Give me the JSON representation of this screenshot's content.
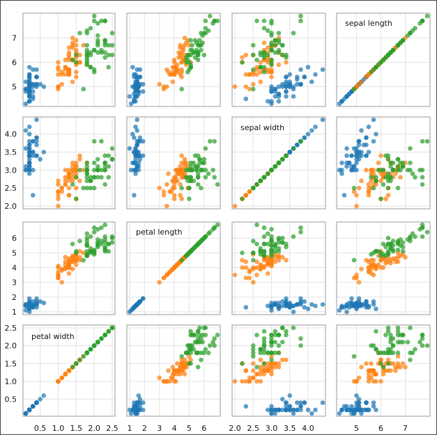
{
  "chart_data": {
    "type": "scatter",
    "subtype": "scatter-plot-matrix",
    "title": "",
    "variables": [
      "sepal length",
      "sepal width",
      "petal length",
      "petal width"
    ],
    "axis_domains": {
      "sepal length": [
        4.3,
        7.9
      ],
      "sepal width": [
        2.0,
        4.4
      ],
      "petal length": [
        1.0,
        6.9
      ],
      "petal width": [
        0.1,
        2.5
      ]
    },
    "x_ticks": {
      "petal width": [
        "0.5",
        "1.0",
        "1.5",
        "2.0",
        "2.5"
      ],
      "petal length": [
        "1",
        "2",
        "3",
        "4",
        "5",
        "6"
      ],
      "sepal width": [
        "2.0",
        "2.5",
        "3.0",
        "3.5",
        "4.0"
      ],
      "sepal length": [
        "5",
        "6",
        "7"
      ]
    },
    "y_ticks": {
      "sepal length": [
        "5",
        "6",
        "7"
      ],
      "sepal width": [
        "2.0",
        "2.5",
        "3.0",
        "3.5",
        "4.0"
      ],
      "petal length": [
        "1",
        "2",
        "3",
        "4",
        "5",
        "6"
      ],
      "petal width": [
        "0.5",
        "1.0",
        "1.5",
        "2.0",
        "2.5"
      ]
    },
    "grid": true,
    "legend": "none",
    "series": [
      {
        "color": "#1f77b4",
        "points": [
          [
            5.1,
            3.5,
            1.4,
            0.2
          ],
          [
            4.9,
            3.0,
            1.4,
            0.2
          ],
          [
            4.7,
            3.2,
            1.3,
            0.2
          ],
          [
            4.6,
            3.1,
            1.5,
            0.2
          ],
          [
            5.0,
            3.6,
            1.4,
            0.2
          ],
          [
            5.4,
            3.9,
            1.7,
            0.4
          ],
          [
            4.6,
            3.4,
            1.4,
            0.3
          ],
          [
            5.0,
            3.4,
            1.5,
            0.2
          ],
          [
            4.4,
            2.9,
            1.4,
            0.2
          ],
          [
            4.9,
            3.1,
            1.5,
            0.1
          ],
          [
            5.4,
            3.7,
            1.5,
            0.2
          ],
          [
            4.8,
            3.4,
            1.6,
            0.2
          ],
          [
            4.8,
            3.0,
            1.4,
            0.1
          ],
          [
            4.3,
            3.0,
            1.1,
            0.1
          ],
          [
            5.8,
            4.0,
            1.2,
            0.2
          ],
          [
            5.7,
            4.4,
            1.5,
            0.4
          ],
          [
            5.4,
            3.9,
            1.3,
            0.4
          ],
          [
            5.1,
            3.5,
            1.4,
            0.3
          ],
          [
            5.7,
            3.8,
            1.7,
            0.3
          ],
          [
            5.1,
            3.8,
            1.5,
            0.3
          ],
          [
            5.4,
            3.4,
            1.7,
            0.2
          ],
          [
            5.1,
            3.7,
            1.5,
            0.4
          ],
          [
            4.6,
            3.6,
            1.0,
            0.2
          ],
          [
            5.1,
            3.3,
            1.7,
            0.5
          ],
          [
            4.8,
            3.4,
            1.9,
            0.2
          ],
          [
            5.0,
            3.0,
            1.6,
            0.2
          ],
          [
            5.0,
            3.4,
            1.6,
            0.4
          ],
          [
            5.2,
            3.5,
            1.5,
            0.2
          ],
          [
            5.2,
            3.4,
            1.4,
            0.2
          ],
          [
            4.7,
            3.2,
            1.6,
            0.2
          ],
          [
            4.8,
            3.1,
            1.6,
            0.2
          ],
          [
            5.4,
            3.4,
            1.5,
            0.4
          ],
          [
            5.2,
            4.1,
            1.5,
            0.1
          ],
          [
            5.5,
            4.2,
            1.4,
            0.2
          ],
          [
            4.9,
            3.1,
            1.5,
            0.2
          ],
          [
            5.0,
            3.2,
            1.2,
            0.2
          ],
          [
            5.5,
            3.5,
            1.3,
            0.2
          ],
          [
            4.9,
            3.6,
            1.4,
            0.1
          ],
          [
            4.4,
            3.0,
            1.3,
            0.2
          ],
          [
            5.1,
            3.4,
            1.5,
            0.2
          ],
          [
            5.0,
            3.5,
            1.3,
            0.3
          ],
          [
            4.5,
            2.3,
            1.3,
            0.3
          ],
          [
            4.4,
            3.2,
            1.3,
            0.2
          ],
          [
            5.0,
            3.5,
            1.6,
            0.6
          ],
          [
            5.1,
            3.8,
            1.9,
            0.4
          ],
          [
            4.8,
            3.0,
            1.4,
            0.3
          ],
          [
            5.1,
            3.8,
            1.6,
            0.2
          ],
          [
            4.6,
            3.2,
            1.4,
            0.2
          ],
          [
            5.3,
            3.7,
            1.5,
            0.2
          ],
          [
            5.0,
            3.3,
            1.4,
            0.2
          ]
        ]
      },
      {
        "color": "#ff7f0e",
        "points": [
          [
            7.0,
            3.2,
            4.7,
            1.4
          ],
          [
            6.4,
            3.2,
            4.5,
            1.5
          ],
          [
            6.9,
            3.1,
            4.9,
            1.5
          ],
          [
            5.5,
            2.3,
            4.0,
            1.3
          ],
          [
            6.5,
            2.8,
            4.6,
            1.5
          ],
          [
            5.7,
            2.8,
            4.5,
            1.3
          ],
          [
            6.3,
            3.3,
            4.7,
            1.6
          ],
          [
            4.9,
            2.4,
            3.3,
            1.0
          ],
          [
            6.6,
            2.9,
            4.6,
            1.3
          ],
          [
            5.2,
            2.7,
            3.9,
            1.4
          ],
          [
            5.0,
            2.0,
            3.5,
            1.0
          ],
          [
            5.9,
            3.0,
            4.2,
            1.5
          ],
          [
            6.0,
            2.2,
            4.0,
            1.0
          ],
          [
            6.1,
            2.9,
            4.7,
            1.4
          ],
          [
            5.6,
            2.9,
            3.6,
            1.3
          ],
          [
            6.7,
            3.1,
            4.4,
            1.4
          ],
          [
            5.6,
            3.0,
            4.5,
            1.5
          ],
          [
            5.8,
            2.7,
            4.1,
            1.0
          ],
          [
            6.2,
            2.2,
            4.5,
            1.5
          ],
          [
            5.6,
            2.5,
            3.9,
            1.1
          ],
          [
            5.9,
            3.2,
            4.8,
            1.8
          ],
          [
            6.1,
            2.8,
            4.0,
            1.3
          ],
          [
            6.3,
            2.5,
            4.9,
            1.5
          ],
          [
            6.1,
            2.8,
            4.7,
            1.2
          ],
          [
            6.4,
            2.9,
            4.3,
            1.3
          ],
          [
            6.6,
            3.0,
            4.4,
            1.4
          ],
          [
            6.8,
            2.8,
            4.8,
            1.4
          ],
          [
            6.7,
            3.0,
            5.0,
            1.7
          ],
          [
            6.0,
            2.9,
            4.5,
            1.5
          ],
          [
            5.7,
            2.6,
            3.5,
            1.0
          ],
          [
            5.5,
            2.4,
            3.8,
            1.1
          ],
          [
            5.5,
            2.4,
            3.7,
            1.0
          ],
          [
            5.8,
            2.7,
            3.9,
            1.2
          ],
          [
            6.0,
            2.7,
            5.1,
            1.6
          ],
          [
            5.4,
            3.0,
            4.5,
            1.5
          ],
          [
            6.0,
            3.4,
            4.5,
            1.6
          ],
          [
            6.7,
            3.1,
            4.7,
            1.5
          ],
          [
            6.3,
            2.3,
            4.4,
            1.3
          ],
          [
            5.6,
            3.0,
            4.1,
            1.3
          ],
          [
            5.5,
            2.5,
            4.0,
            1.3
          ],
          [
            5.5,
            2.6,
            4.4,
            1.2
          ],
          [
            6.1,
            3.0,
            4.6,
            1.4
          ],
          [
            5.8,
            2.6,
            4.0,
            1.2
          ],
          [
            5.0,
            2.3,
            3.3,
            1.0
          ],
          [
            5.6,
            2.7,
            4.2,
            1.3
          ],
          [
            5.7,
            3.0,
            4.2,
            1.2
          ],
          [
            5.7,
            2.9,
            4.2,
            1.3
          ],
          [
            6.2,
            2.9,
            4.3,
            1.3
          ],
          [
            5.1,
            2.5,
            3.0,
            1.1
          ],
          [
            5.7,
            2.8,
            4.1,
            1.3
          ]
        ]
      },
      {
        "color": "#2ca02c",
        "points": [
          [
            6.3,
            3.3,
            6.0,
            2.5
          ],
          [
            5.8,
            2.7,
            5.1,
            1.9
          ],
          [
            7.1,
            3.0,
            5.9,
            2.1
          ],
          [
            6.3,
            2.9,
            5.6,
            1.8
          ],
          [
            6.5,
            3.0,
            5.8,
            2.2
          ],
          [
            7.6,
            3.0,
            6.6,
            2.1
          ],
          [
            4.9,
            2.5,
            4.5,
            1.7
          ],
          [
            7.3,
            2.9,
            6.3,
            1.8
          ],
          [
            6.7,
            2.5,
            5.8,
            1.8
          ],
          [
            7.2,
            3.6,
            6.1,
            2.5
          ],
          [
            6.5,
            3.2,
            5.1,
            2.0
          ],
          [
            6.4,
            2.7,
            5.3,
            1.9
          ],
          [
            6.8,
            3.0,
            5.5,
            2.1
          ],
          [
            5.7,
            2.5,
            5.0,
            2.0
          ],
          [
            5.8,
            2.8,
            5.1,
            2.4
          ],
          [
            6.4,
            3.2,
            5.3,
            2.3
          ],
          [
            6.5,
            3.0,
            5.5,
            1.8
          ],
          [
            7.7,
            3.8,
            6.7,
            2.2
          ],
          [
            7.7,
            2.6,
            6.9,
            2.3
          ],
          [
            6.0,
            2.2,
            5.0,
            1.5
          ],
          [
            6.9,
            3.2,
            5.7,
            2.3
          ],
          [
            5.6,
            2.8,
            4.9,
            2.0
          ],
          [
            7.7,
            2.8,
            6.7,
            2.0
          ],
          [
            6.3,
            2.7,
            4.9,
            1.8
          ],
          [
            6.7,
            3.3,
            5.7,
            2.1
          ],
          [
            7.2,
            3.2,
            6.0,
            1.8
          ],
          [
            6.2,
            2.8,
            4.8,
            1.8
          ],
          [
            6.1,
            3.0,
            4.9,
            1.8
          ],
          [
            6.4,
            2.8,
            5.6,
            2.1
          ],
          [
            7.2,
            3.0,
            5.8,
            1.6
          ],
          [
            7.4,
            2.8,
            6.1,
            1.9
          ],
          [
            7.9,
            3.8,
            6.4,
            2.0
          ],
          [
            6.4,
            2.8,
            5.6,
            2.2
          ],
          [
            6.3,
            2.8,
            5.1,
            1.5
          ],
          [
            6.1,
            2.6,
            5.6,
            1.4
          ],
          [
            7.7,
            3.0,
            6.1,
            2.3
          ],
          [
            6.3,
            3.4,
            5.6,
            2.4
          ],
          [
            6.4,
            3.1,
            5.5,
            1.8
          ],
          [
            6.0,
            3.0,
            4.8,
            1.8
          ],
          [
            6.9,
            3.1,
            5.4,
            2.1
          ],
          [
            6.7,
            3.1,
            5.6,
            2.4
          ],
          [
            6.9,
            3.1,
            5.1,
            2.3
          ],
          [
            5.8,
            2.7,
            5.1,
            1.9
          ],
          [
            6.8,
            3.2,
            5.9,
            2.3
          ],
          [
            6.7,
            3.3,
            5.7,
            2.5
          ],
          [
            6.7,
            3.0,
            5.2,
            2.3
          ],
          [
            6.3,
            2.5,
            5.0,
            1.9
          ],
          [
            6.5,
            3.0,
            5.2,
            2.0
          ],
          [
            6.2,
            3.4,
            5.4,
            2.3
          ],
          [
            5.9,
            3.0,
            5.1,
            1.8
          ]
        ]
      }
    ]
  }
}
